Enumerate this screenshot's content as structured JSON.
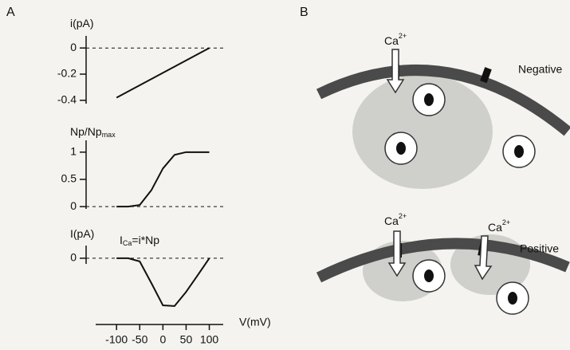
{
  "panel_a_label": "A",
  "panel_b_label": "B",
  "chart_data": [
    {
      "type": "line",
      "ylabel": "i(pA)",
      "x": [
        -100,
        100
      ],
      "values": [
        -0.38,
        0
      ],
      "color": "#111",
      "xlim": [
        -145,
        130
      ],
      "ylim": [
        -0.45,
        0.05
      ],
      "yticks": [
        0,
        -0.2,
        -0.4
      ],
      "reference_lines": [
        0
      ]
    },
    {
      "type": "line",
      "ylabel": "Np/Np",
      "ylabel_sub": "max",
      "x": [
        -100,
        -75,
        -50,
        -25,
        0,
        25,
        50,
        75,
        100
      ],
      "values": [
        0,
        0,
        0.03,
        0.3,
        0.7,
        0.95,
        1,
        1,
        1
      ],
      "color": "#111",
      "xlim": [
        -145,
        130
      ],
      "ylim": [
        -0.1,
        1.1
      ],
      "yticks": [
        1,
        0.5,
        0
      ],
      "reference_lines": [
        0
      ]
    },
    {
      "type": "line",
      "ylabel": "I(pA)",
      "annotation": {
        "text": "I",
        "sub": "Ca",
        "rest": "=i*Np"
      },
      "x": [
        -100,
        -75,
        -50,
        -25,
        0,
        25,
        50,
        75,
        100
      ],
      "values": [
        0,
        0,
        -0.009,
        -0.07,
        -0.133,
        -0.135,
        -0.095,
        -0.048,
        0
      ],
      "color": "#111",
      "xlim": [
        -145,
        130
      ],
      "ylim": [
        -0.16,
        0.02
      ],
      "yticks": [
        0
      ],
      "reference_lines": [
        0
      ],
      "xlabel": "V(mV)",
      "xticks": [
        -100,
        -50,
        0,
        50,
        100
      ]
    }
  ],
  "diagram": {
    "ions": [
      {
        "ion": "Ca",
        "charge": "2+"
      },
      {
        "ion": "Ca",
        "charge": "2+"
      },
      {
        "ion": "Ca",
        "charge": "2+"
      }
    ],
    "negative_label": "Negative",
    "positive_label": "Positive"
  }
}
